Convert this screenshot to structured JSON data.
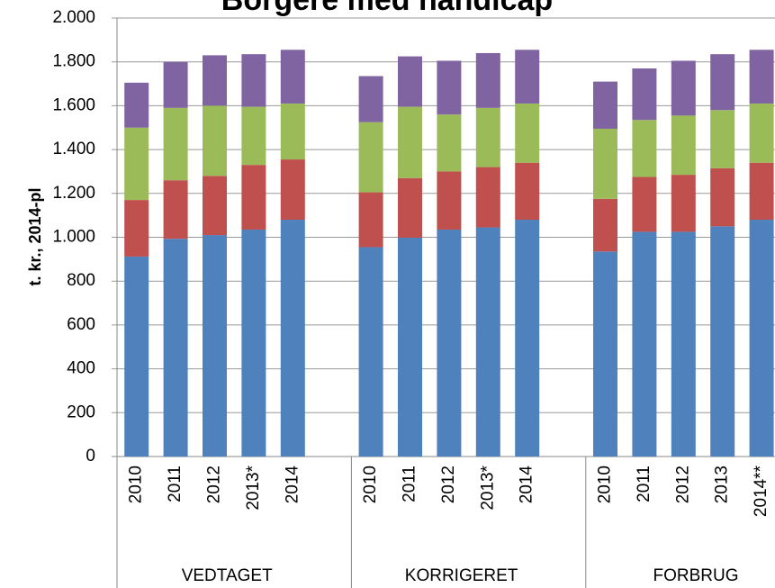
{
  "chart_data": {
    "type": "bar",
    "stacked": true,
    "title": "Borgere med handicap",
    "y_label": "t. kr., 2014-pl",
    "categories": [
      "2010",
      "2011",
      "2012",
      "2013*",
      "2014",
      "2010",
      "2011",
      "2012",
      "2013*",
      "2014",
      "2010",
      "2011",
      "2012",
      "2013",
      "2014**"
    ],
    "category_groups": [
      "VEDTAGET",
      "KORRIGERET",
      "FORBRUG"
    ],
    "series": [
      {
        "color": "#4f81bd",
        "values": [
          912,
          993,
          1010,
          1035,
          1080,
          955,
          998,
          1035,
          1045,
          1080,
          935,
          1025,
          1025,
          1050,
          1080
        ]
      },
      {
        "color": "#c0504d",
        "values": [
          258,
          267,
          270,
          295,
          275,
          250,
          272,
          265,
          275,
          260,
          240,
          250,
          260,
          265,
          260
        ]
      },
      {
        "color": "#9bbb59",
        "values": [
          330,
          330,
          320,
          265,
          255,
          320,
          325,
          260,
          270,
          270,
          320,
          260,
          270,
          265,
          270
        ]
      },
      {
        "color": "#8064a2",
        "values": [
          205,
          210,
          230,
          240,
          245,
          210,
          230,
          245,
          250,
          245,
          215,
          235,
          250,
          255,
          245
        ]
      }
    ],
    "ylim": [
      0,
      2000
    ],
    "yticks": [
      0,
      200,
      400,
      600,
      800,
      {
        "value": 1000,
        "label": "1.000"
      },
      {
        "value": 1200,
        "label": "1.200"
      },
      {
        "value": 1400,
        "label": "1.400"
      },
      {
        "value": 1600,
        "label": "1.600"
      },
      {
        "value": 1800,
        "label": "1.800"
      },
      {
        "value": 2000,
        "label": "2.000"
      }
    ],
    "grid": true
  }
}
